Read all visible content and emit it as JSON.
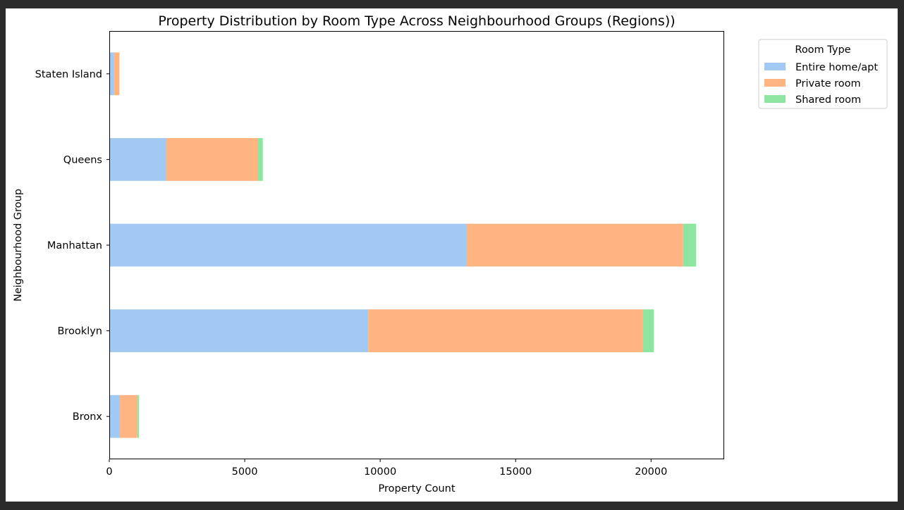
{
  "chart_data": {
    "type": "bar",
    "orientation": "horizontal",
    "stacked": true,
    "title": "Property Distribution by Room Type Across Neighbourhood Groups (Regions))",
    "xlabel": "Property Count",
    "ylabel": "Neighbourhood Group",
    "xlim": [
      0,
      22700
    ],
    "xticks": [
      0,
      5000,
      10000,
      15000,
      20000
    ],
    "categories": [
      "Bronx",
      "Brooklyn",
      "Manhattan",
      "Queens",
      "Staten Island"
    ],
    "series": [
      {
        "name": "Entire home/apt",
        "color": "#a1c9f4",
        "values": [
          379,
          9559,
          13199,
          2096,
          176
        ]
      },
      {
        "name": "Private room",
        "color": "#ffb482",
        "values": [
          652,
          10132,
          7982,
          3372,
          188
        ]
      },
      {
        "name": "Shared room",
        "color": "#8de5a1",
        "values": [
          60,
          413,
          480,
          198,
          9
        ]
      }
    ],
    "legend": {
      "title": "Room Type",
      "placement": "outside-top-right"
    },
    "grid": false
  }
}
